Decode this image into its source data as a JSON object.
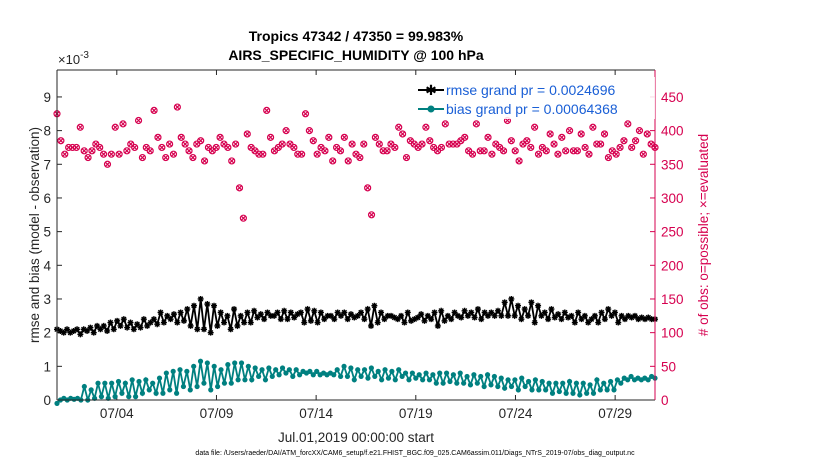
{
  "footer": {
    "datafile": "data file: /Users/raeder/DAI/ATM_forcXX/CAM6_setup/f.e21.FHIST_BGC.f09_025.CAM6assim.011/Diags_NTrS_2019-07/obs_diag_output.nc"
  },
  "colors": {
    "rmse": "#000000",
    "bias": "#008080",
    "obs": "#d6004f",
    "axis": "#262626",
    "legend_text": "#1a5fd6"
  },
  "chart_data": {
    "type": "line",
    "title": "Tropics 47342 / 47350 = 99.983%",
    "subtitle": "AIRS_SPECIFIC_HUMIDITY @ 100 hPa",
    "xlabel": "Jul.01,2019 00:00:00 start",
    "ylabel": "rmse and bias (model - observation)",
    "y2label": "# of obs: o=possible; ×=evaluated",
    "y_exponent": "×10",
    "y_exponent_power": "-3",
    "xlim": [
      1,
      31
    ],
    "ylim": [
      0,
      9.8
    ],
    "y2lim": [
      0,
      490
    ],
    "xticks": [
      4,
      9,
      14,
      19,
      24,
      29
    ],
    "xtick_labels": [
      "07/04",
      "07/09",
      "07/14",
      "07/19",
      "07/24",
      "07/29"
    ],
    "yticks": [
      0,
      1,
      2,
      3,
      4,
      5,
      6,
      7,
      8,
      9
    ],
    "ytick_labels": [
      "0",
      "1",
      "2",
      "3",
      "4",
      "5",
      "6",
      "7",
      "8",
      "9"
    ],
    "y2ticks": [
      0,
      50,
      100,
      150,
      200,
      250,
      300,
      350,
      400,
      450
    ],
    "y2tick_labels": [
      "0",
      "50",
      "100",
      "150",
      "200",
      "250",
      "300",
      "350",
      "400",
      "450"
    ],
    "legend": {
      "placement": "top-right",
      "entries": [
        "rmse grand pr = 0.0024696",
        "bias grand pr = 0.00064368"
      ]
    },
    "series": [
      {
        "name": "rmse",
        "color": "#000000",
        "values": [
          2.1,
          2.05,
          2.0,
          2.1,
          2.0,
          2.05,
          2.1,
          1.95,
          2.1,
          2.05,
          2.15,
          2.0,
          2.2,
          2.1,
          2.2,
          2.05,
          2.3,
          2.1,
          2.35,
          2.2,
          2.4,
          2.15,
          2.3,
          2.1,
          2.25,
          2.15,
          2.4,
          2.2,
          2.3,
          2.4,
          2.25,
          2.6,
          2.3,
          2.5,
          2.4,
          2.55,
          2.3,
          2.6,
          2.35,
          2.7,
          2.2,
          2.8,
          2.1,
          3.0,
          2.1,
          2.85,
          2.0,
          2.8,
          2.2,
          2.6,
          2.3,
          2.5,
          2.1,
          2.7,
          2.2,
          2.5,
          2.3,
          2.6,
          2.3,
          2.65,
          2.45,
          2.55,
          2.4,
          2.6,
          2.5,
          2.5,
          2.6,
          2.4,
          2.65,
          2.4,
          2.6,
          2.45,
          2.55,
          2.6,
          2.3,
          2.7,
          2.35,
          2.65,
          2.3,
          2.6,
          2.4,
          2.5,
          2.5,
          2.4,
          2.6,
          2.5,
          2.6,
          2.4,
          2.55,
          2.45,
          2.5,
          2.6,
          2.4,
          2.7,
          2.2,
          2.8,
          2.3,
          2.6,
          2.4,
          2.5,
          2.5,
          2.45,
          2.4,
          2.5,
          2.3,
          2.6,
          2.35,
          2.4,
          2.45,
          2.55,
          2.35,
          2.5,
          2.4,
          2.6,
          2.2,
          2.65,
          2.35,
          2.5,
          2.4,
          2.6,
          2.5,
          2.45,
          2.65,
          2.5,
          2.6,
          2.45,
          2.7,
          2.4,
          2.6,
          2.5,
          2.6,
          2.5,
          2.65,
          2.5,
          2.9,
          2.5,
          3.0,
          2.5,
          2.8,
          2.4,
          2.7,
          2.5,
          2.9,
          2.3,
          2.8,
          2.5,
          2.6,
          2.4,
          2.7,
          2.45,
          2.55,
          2.4,
          2.6,
          2.45,
          2.5,
          2.3,
          2.6,
          2.4,
          2.5,
          2.3,
          2.4,
          2.5,
          2.3,
          2.6,
          2.4,
          2.7,
          2.5,
          2.6,
          2.3,
          2.5,
          2.4,
          2.5,
          2.45,
          2.5,
          2.4,
          2.45,
          2.4,
          2.45,
          2.4,
          2.4
        ]
      },
      {
        "name": "bias",
        "color": "#008080",
        "values": [
          -0.1,
          0.0,
          0.05,
          0.0,
          0.05,
          0.02,
          0.05,
          0.0,
          0.4,
          0.0,
          0.3,
          0.05,
          0.5,
          0.1,
          0.5,
          0.05,
          0.5,
          0.1,
          0.55,
          0.2,
          0.5,
          0.1,
          0.6,
          0.1,
          0.55,
          0.2,
          0.6,
          0.3,
          0.5,
          0.2,
          0.65,
          0.2,
          0.8,
          0.3,
          0.85,
          0.2,
          0.9,
          0.4,
          0.85,
          0.3,
          1.0,
          0.4,
          1.15,
          0.5,
          1.1,
          0.3,
          1.0,
          0.4,
          0.9,
          0.5,
          1.05,
          0.5,
          1.1,
          0.6,
          1.1,
          0.6,
          1.0,
          0.6,
          0.95,
          0.7,
          0.9,
          0.6,
          0.95,
          0.7,
          0.9,
          0.75,
          0.95,
          0.8,
          0.9,
          0.7,
          0.9,
          0.75,
          0.85,
          0.8,
          0.85,
          0.75,
          0.85,
          0.75,
          0.8,
          0.75,
          0.8,
          0.75,
          0.9,
          0.7,
          1.0,
          0.7,
          0.95,
          0.6,
          0.9,
          0.7,
          0.9,
          0.65,
          0.95,
          0.7,
          0.85,
          0.6,
          0.9,
          0.65,
          0.85,
          0.6,
          0.9,
          0.7,
          0.8,
          0.6,
          0.8,
          0.65,
          0.75,
          0.6,
          0.8,
          0.6,
          0.75,
          0.5,
          0.8,
          0.5,
          0.8,
          0.55,
          0.75,
          0.5,
          0.8,
          0.5,
          0.7,
          0.45,
          0.75,
          0.5,
          0.7,
          0.4,
          0.75,
          0.45,
          0.7,
          0.4,
          0.65,
          0.35,
          0.6,
          0.4,
          0.6,
          0.3,
          0.65,
          0.4,
          0.55,
          0.3,
          0.6,
          0.3,
          0.55,
          0.3,
          0.5,
          0.2,
          0.5,
          0.25,
          0.5,
          0.2,
          0.55,
          0.2,
          0.5,
          0.15,
          0.5,
          0.2,
          0.45,
          0.2,
          0.6,
          0.3,
          0.5,
          0.3,
          0.55,
          0.3,
          0.6,
          0.5,
          0.65,
          0.6,
          0.7,
          0.6,
          0.65,
          0.6,
          0.65,
          0.6,
          0.7,
          0.65
        ]
      },
      {
        "name": "obs_possible",
        "color": "#d6004f",
        "axis": "right",
        "values": [
          425,
          385,
          365,
          375,
          375,
          375,
          405,
          370,
          360,
          370,
          380,
          375,
          365,
          350,
          365,
          405,
          365,
          410,
          370,
          380,
          375,
          415,
          360,
          375,
          370,
          430,
          390,
          375,
          360,
          380,
          365,
          435,
          390,
          380,
          370,
          360,
          380,
          385,
          355,
          375,
          370,
          375,
          390,
          380,
          375,
          355,
          380,
          315,
          270,
          395,
          375,
          370,
          365,
          365,
          430,
          390,
          370,
          375,
          380,
          400,
          380,
          375,
          365,
          365,
          425,
          400,
          385,
          365,
          375,
          370,
          390,
          355,
          375,
          370,
          390,
          355,
          380,
          365,
          360,
          380,
          315,
          275,
          390,
          380,
          370,
          370,
          380,
          375,
          405,
          395,
          360,
          385,
          380,
          375,
          380,
          405,
          385,
          375,
          370,
          375,
          410,
          380,
          380,
          380,
          385,
          390,
          370,
          365,
          410,
          370,
          370,
          390,
          365,
          380,
          375,
          370,
          415,
          385,
          370,
          355,
          380,
          385,
          375,
          405,
          365,
          375,
          370,
          395,
          380,
          365,
          390,
          370,
          400,
          370,
          370,
          395,
          375,
          365,
          405,
          380,
          380,
          395,
          360,
          370,
          365,
          375,
          385,
          410,
          375,
          385,
          400,
          365,
          395,
          380,
          375
        ]
      }
    ]
  }
}
